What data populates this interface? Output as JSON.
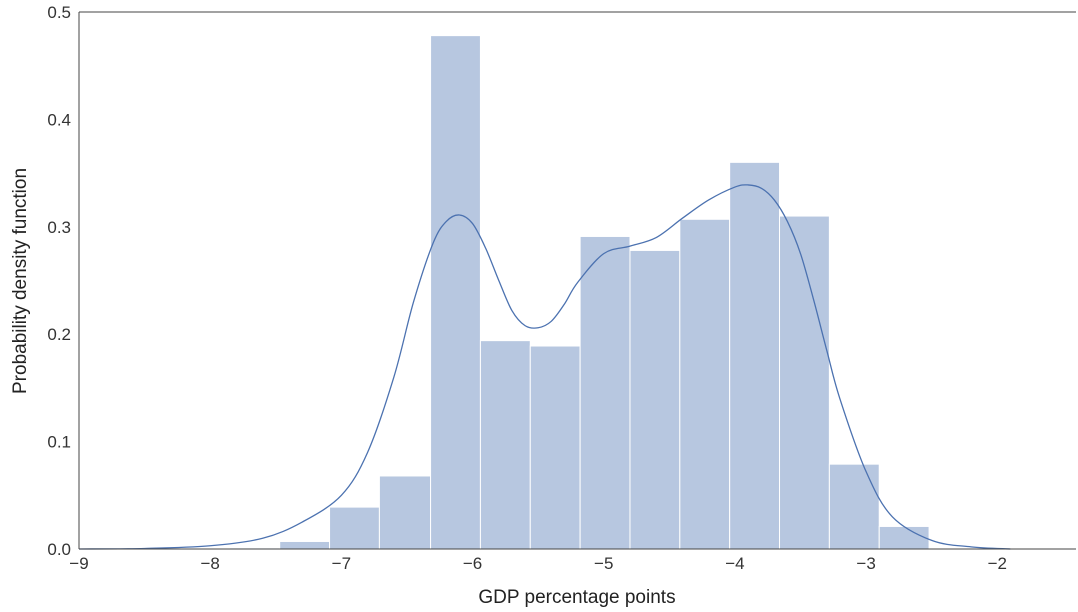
{
  "chart_data": {
    "type": "bar",
    "title": "",
    "xlabel": "GDP percentage points",
    "ylabel": "Probability density function",
    "xlim": [
      -9.0,
      -1.4
    ],
    "ylim": [
      0.0,
      0.5
    ],
    "xticks": [
      -9,
      -8,
      -7,
      -6,
      -5,
      -4,
      -3,
      -2
    ],
    "xtick_labels": [
      "−9",
      "−8",
      "−7",
      "−6",
      "−5",
      "−4",
      "−3",
      "−2"
    ],
    "yticks": [
      0.0,
      0.1,
      0.2,
      0.3,
      0.4,
      0.5
    ],
    "ytick_labels": [
      "0.0",
      "0.1",
      "0.2",
      "0.3",
      "0.4",
      "0.5"
    ],
    "grid": false,
    "histogram": {
      "bin_edges": [
        -7.85,
        -7.47,
        -7.09,
        -6.71,
        -6.32,
        -5.94,
        -5.56,
        -5.18,
        -4.8,
        -4.42,
        -4.04,
        -3.66,
        -3.28,
        -2.9,
        -2.52
      ],
      "densities": [
        0.001,
        0.007,
        0.039,
        0.068,
        0.478,
        0.194,
        0.189,
        0.291,
        0.278,
        0.307,
        0.36,
        0.31,
        0.079,
        0.021
      ],
      "color": "#b7c7e0",
      "edge_color": "#ffffff"
    },
    "kde": {
      "color": "#4c72b0",
      "x": [
        -9.0,
        -8.5,
        -8.0,
        -7.6,
        -7.3,
        -7.0,
        -6.8,
        -6.6,
        -6.45,
        -6.3,
        -6.2,
        -6.1,
        -6.0,
        -5.9,
        -5.8,
        -5.7,
        -5.6,
        -5.5,
        -5.4,
        -5.3,
        -5.2,
        -5.0,
        -4.8,
        -4.6,
        -4.4,
        -4.2,
        -4.0,
        -3.9,
        -3.8,
        -3.7,
        -3.6,
        -3.5,
        -3.4,
        -3.3,
        -3.2,
        -3.0,
        -2.8,
        -2.5,
        -2.2,
        -1.9
      ],
      "y": [
        0.0,
        0.0005,
        0.003,
        0.01,
        0.025,
        0.05,
        0.09,
        0.16,
        0.23,
        0.285,
        0.305,
        0.311,
        0.303,
        0.28,
        0.25,
        0.222,
        0.208,
        0.206,
        0.212,
        0.228,
        0.248,
        0.275,
        0.282,
        0.29,
        0.308,
        0.325,
        0.337,
        0.339,
        0.336,
        0.325,
        0.305,
        0.275,
        0.232,
        0.185,
        0.14,
        0.072,
        0.03,
        0.008,
        0.002,
        0.0
      ]
    }
  }
}
